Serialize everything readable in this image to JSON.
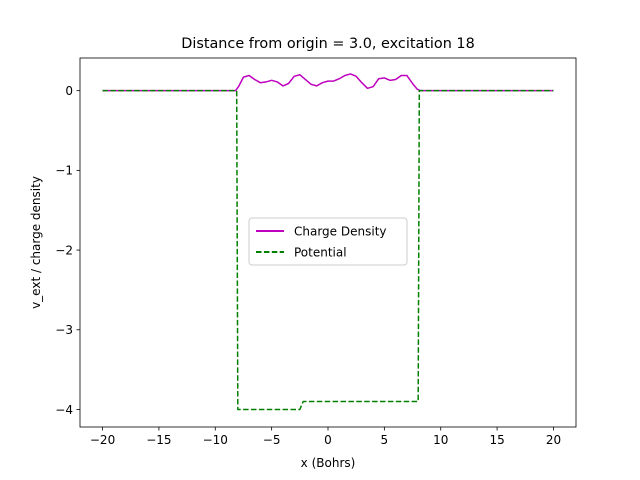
{
  "chart_data": {
    "type": "line",
    "title": "Distance from origin = 3.0, excitation 18",
    "xlabel": "x (Bohrs)",
    "ylabel": "v_ext / charge density",
    "xlim": [
      -22,
      22
    ],
    "ylim": [
      -4.22,
      0.41
    ],
    "xticks": [
      -20,
      -15,
      -10,
      -5,
      0,
      5,
      10,
      15,
      20
    ],
    "xtick_labels": [
      "−20",
      "−15",
      "−10",
      "−5",
      "0",
      "5",
      "10",
      "15",
      "20"
    ],
    "yticks": [
      0,
      -1,
      -2,
      -3,
      -4
    ],
    "ytick_labels": [
      "0",
      "−1",
      "−2",
      "−3",
      "−4"
    ],
    "grid": false,
    "legend_position": "center",
    "series": [
      {
        "name": "Charge Density",
        "color": "#bf00bf",
        "style": "solid",
        "x": [
          -20,
          -8.2,
          -7.9,
          -7.5,
          -7.0,
          -6.5,
          -6.0,
          -5.5,
          -5.0,
          -4.5,
          -4.0,
          -3.5,
          -3.0,
          -2.5,
          -2.0,
          -1.5,
          -1.0,
          -0.5,
          0.0,
          0.5,
          1.0,
          1.5,
          2.0,
          2.5,
          3.0,
          3.5,
          4.0,
          4.5,
          5.0,
          5.5,
          6.0,
          6.5,
          7.0,
          7.5,
          7.9,
          8.2,
          20
        ],
        "y": [
          0,
          0,
          0.06,
          0.17,
          0.19,
          0.14,
          0.1,
          0.11,
          0.13,
          0.11,
          0.06,
          0.09,
          0.18,
          0.2,
          0.14,
          0.08,
          0.06,
          0.1,
          0.12,
          0.12,
          0.15,
          0.19,
          0.21,
          0.18,
          0.1,
          0.03,
          0.05,
          0.15,
          0.16,
          0.13,
          0.14,
          0.19,
          0.19,
          0.09,
          0.02,
          0,
          0
        ]
      },
      {
        "name": "Potential",
        "color": "#008000",
        "style": "dashed",
        "x": [
          -20,
          -8.1,
          -8.0,
          -2.5,
          -2.2,
          8.0,
          8.1,
          20
        ],
        "y": [
          0,
          0,
          -4.0,
          -4.0,
          -3.9,
          -3.9,
          0,
          0
        ]
      }
    ]
  }
}
